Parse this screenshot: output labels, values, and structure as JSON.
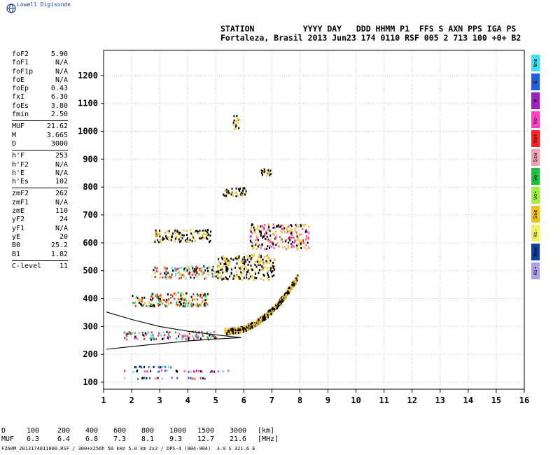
{
  "header": {
    "brand": "Lowell Digisonde",
    "station_line1": "STATION          YYYY DAY   DDD HHMM P1  FFS S AXN PPS IGA PS",
    "station_line2": "Fortaleza, Brasil 2013 Jun23 174 0110 RSF 005 2 713 100 +0+ B2"
  },
  "params": {
    "group1": [
      {
        "label": "foF2",
        "value": "5.90"
      },
      {
        "label": "foF1",
        "value": "N/A"
      },
      {
        "label": "foF1p",
        "value": "N/A"
      },
      {
        "label": "foE",
        "value": "N/A"
      },
      {
        "label": "foEp",
        "value": "0.43"
      },
      {
        "label": "fxI",
        "value": "6.30"
      },
      {
        "label": "foEs",
        "value": "3.80"
      },
      {
        "label": "fmin",
        "value": "2.50"
      }
    ],
    "group2": [
      {
        "label": "MUF",
        "value": "21.62"
      },
      {
        "label": "M",
        "value": "3.665"
      },
      {
        "label": "D",
        "value": "3000"
      }
    ],
    "group3": [
      {
        "label": "h'F",
        "value": "253"
      },
      {
        "label": "h'F2",
        "value": "N/A"
      },
      {
        "label": "h'E",
        "value": "N/A"
      },
      {
        "label": "h'Es",
        "value": "102"
      }
    ],
    "group4": [
      {
        "label": "zmF2",
        "value": "262"
      },
      {
        "label": "zmF1",
        "value": "N/A"
      },
      {
        "label": "zmE",
        "value": "110"
      },
      {
        "label": "yF2",
        "value": "24"
      },
      {
        "label": "yF1",
        "value": "N/A"
      },
      {
        "label": "yE",
        "value": "20"
      },
      {
        "label": "B0",
        "value": "25.2"
      },
      {
        "label": "B1",
        "value": "1.82"
      }
    ],
    "group5": [
      {
        "label": "C-level",
        "value": "11"
      }
    ]
  },
  "legend": [
    {
      "label": "Nne",
      "color": "#40e0f0"
    },
    {
      "label": "E",
      "color": "#2060e0"
    },
    {
      "label": "W",
      "color": "#a020c0"
    },
    {
      "label": "Vo-",
      "color": "#ff40c0"
    },
    {
      "label": "Vo+",
      "color": "#ff2020"
    },
    {
      "label": "Ssw",
      "color": "#f0a0b0"
    },
    {
      "label": "Vo-",
      "color": "#20c040"
    },
    {
      "label": "Vo+",
      "color": "#a0f040"
    },
    {
      "label": "Sse",
      "color": "#f0c020"
    },
    {
      "label": "Hi-",
      "color": "#f0f060"
    },
    {
      "label": "Nnw",
      "color": "#1040a0"
    },
    {
      "label": "Hi+",
      "color": "#b0a0f0"
    }
  ],
  "muf_table": {
    "d_label": "D",
    "d_values": [
      "100",
      "200",
      "400",
      "600",
      "800",
      "1000",
      "1500",
      "3000"
    ],
    "d_unit": "[km]",
    "muf_label": "MUF",
    "muf_values": [
      "6.3",
      "6.4",
      "6.8",
      "7.3",
      "8.1",
      "9.3",
      "12.7",
      "21.6"
    ],
    "muf_unit": "[MHz]"
  },
  "footer": "FZA0M_2013174011000.RSF / 300+x256h 50 kHz 5.0 km 2x2 / DPS-4 (904-904)  3.9 S 321.6 E",
  "chart_data": {
    "type": "scatter",
    "title": "",
    "xlabel": "",
    "ylabel": "",
    "xlim": [
      1,
      16
    ],
    "ylim": [
      75,
      1290
    ],
    "x_ticks": [
      1,
      2,
      3,
      4,
      5,
      6,
      7,
      8,
      9,
      10,
      11,
      12,
      13,
      14,
      15,
      16
    ],
    "y_ticks": [
      100,
      200,
      300,
      400,
      500,
      600,
      700,
      800,
      900,
      1000,
      1100,
      1200
    ],
    "grid": true,
    "clusters": [
      {
        "name": "Es layer",
        "x": [
          1.7,
          4.6
        ],
        "y": [
          115,
          120
        ],
        "colors": [
          "#ff2020",
          "#f0a0b0",
          "#2060e0",
          "#000000"
        ]
      },
      {
        "name": "Es layer",
        "x": [
          1.7,
          5.6
        ],
        "y": [
          140,
          146
        ],
        "colors": [
          "#40e0f0",
          "#a020c0",
          "#ff40c0",
          "#000000"
        ]
      },
      {
        "name": "Es layer",
        "x": [
          1.7,
          3.5
        ],
        "y": [
          155,
          160
        ],
        "colors": [
          "#40e0f0",
          "#2060e0",
          "#000000"
        ]
      },
      {
        "name": "F layer o",
        "x": [
          1.7,
          5.0
        ],
        "y": [
          255,
          285
        ],
        "colors": [
          "#40e0f0",
          "#ff2020",
          "#ff40c0",
          "#000000",
          "#20c040"
        ]
      },
      {
        "name": "F trace",
        "x": [
          5.3,
          7.9
        ],
        "y": [
          285,
          480
        ],
        "colors": [
          "#f0c020",
          "#000000"
        ]
      },
      {
        "name": "2F",
        "x": [
          2.0,
          4.7
        ],
        "y": [
          375,
          425
        ],
        "colors": [
          "#ff2020",
          "#f0c020",
          "#000000",
          "#20c040"
        ]
      },
      {
        "name": "2F",
        "x": [
          5.0,
          7.1
        ],
        "y": [
          470,
          560
        ],
        "colors": [
          "#f0c020",
          "#000000"
        ]
      },
      {
        "name": "3F",
        "x": [
          2.7,
          5.0
        ],
        "y": [
          475,
          520
        ],
        "colors": [
          "#ff2020",
          "#f0c020",
          "#000000",
          "#40e0f0"
        ]
      },
      {
        "name": "3F",
        "x": [
          6.2,
          8.3
        ],
        "y": [
          580,
          670
        ],
        "colors": [
          "#f0c020",
          "#000000",
          "#ff40c0"
        ]
      },
      {
        "name": "4F",
        "x": [
          2.8,
          4.8
        ],
        "y": [
          605,
          650
        ],
        "colors": [
          "#f0c020",
          "#000000"
        ]
      },
      {
        "name": "5F",
        "x": [
          5.2,
          6.1
        ],
        "y": [
          770,
          800
        ],
        "colors": [
          "#f0c020",
          "#000000"
        ]
      },
      {
        "name": "6F",
        "x": [
          6.6,
          7.0
        ],
        "y": [
          840,
          870
        ],
        "colors": [
          "#f0c020",
          "#000000"
        ]
      },
      {
        "name": "high",
        "x": [
          5.6,
          5.8
        ],
        "y": [
          1010,
          1060
        ],
        "colors": [
          "#f0c020",
          "#000000"
        ]
      }
    ],
    "curves": [
      {
        "name": "profile-upper",
        "x": [
          1.1,
          2.0,
          3.0,
          4.0,
          5.0,
          5.9
        ],
        "y": [
          352,
          325,
          300,
          283,
          270,
          260
        ]
      },
      {
        "name": "profile-lower",
        "x": [
          1.1,
          2.0,
          3.0,
          4.0,
          5.0,
          5.9
        ],
        "y": [
          218,
          228,
          238,
          248,
          255,
          260
        ]
      }
    ]
  }
}
